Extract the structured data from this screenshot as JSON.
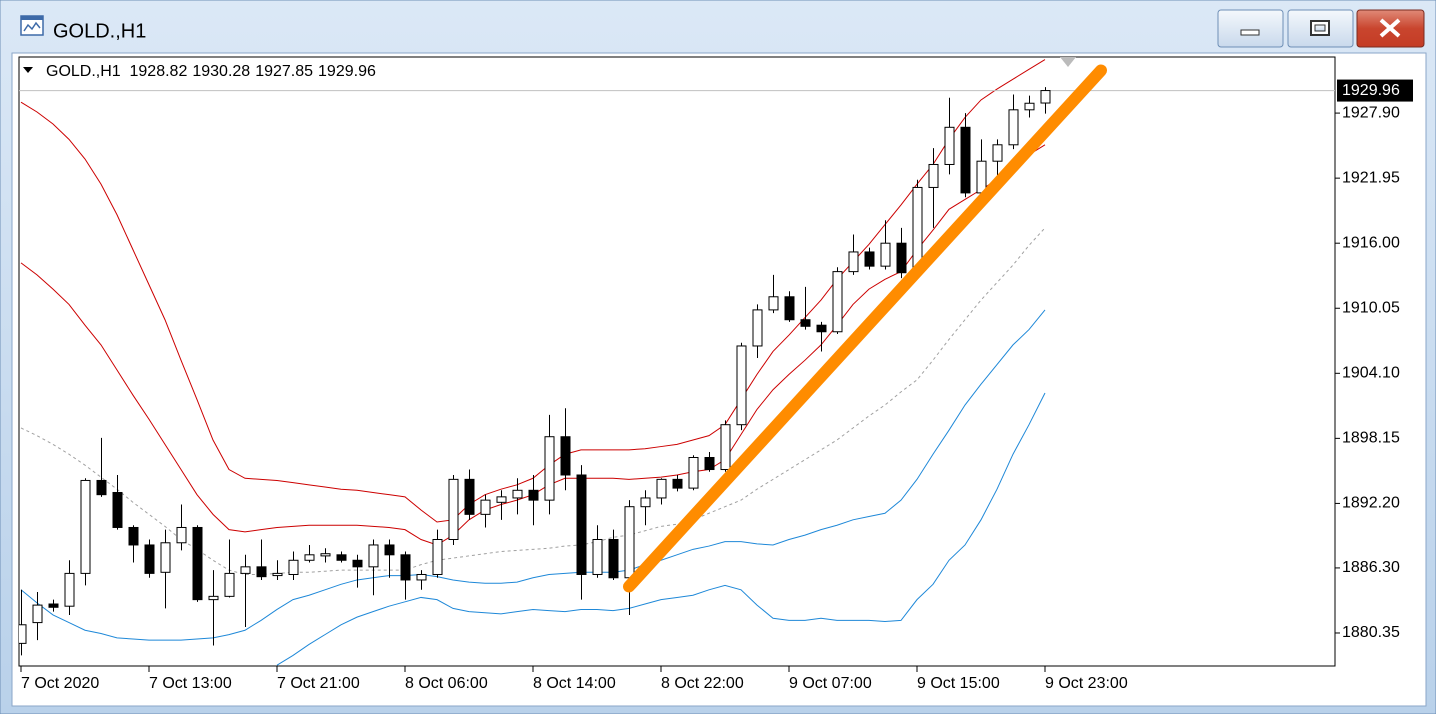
{
  "chart_data": {
    "type": "candlestick",
    "title": "GOLD.,H1",
    "categories": [
      "7 Oct 2020",
      null,
      null,
      null,
      null,
      null,
      null,
      null,
      "7 Oct 13:00",
      null,
      null,
      null,
      null,
      null,
      null,
      null,
      "7 Oct 21:00",
      null,
      null,
      null,
      null,
      null,
      null,
      null,
      "8 Oct 06:00",
      null,
      null,
      null,
      null,
      null,
      null,
      null,
      "8 Oct 14:00",
      null,
      null,
      null,
      null,
      null,
      null,
      null,
      "8 Oct 22:00",
      null,
      null,
      null,
      null,
      null,
      null,
      null,
      "9 Oct 07:00",
      null,
      null,
      null,
      null,
      null,
      null,
      null,
      "9 Oct 15:00",
      null,
      null,
      null,
      null,
      null,
      null,
      null,
      "9 Oct 23:00"
    ],
    "open": [
      1879.4,
      1881.3,
      1883.0,
      1882.8,
      1885.8,
      1894.3,
      1893.2,
      1890.0,
      1888.4,
      1885.9,
      1888.6,
      1890.0,
      1883.4,
      1883.7,
      1885.8,
      1886.4,
      1885.6,
      1885.7,
      1887.0,
      1887.4,
      1887.5,
      1887.0,
      1886.4,
      1888.4,
      1887.5,
      1885.2,
      1885.7,
      1888.9,
      1894.4,
      1891.2,
      1892.3,
      1892.7,
      1893.4,
      1892.5,
      1898.3,
      1894.8,
      1885.7,
      1888.9,
      1885.4,
      1891.9,
      1892.7,
      1894.4,
      1893.6,
      1896.4,
      1895.3,
      1899.4,
      1906.6,
      1909.9,
      1911.1,
      1909.0,
      1908.5,
      1907.9,
      1913.4,
      1915.2,
      1913.9,
      1916.0,
      1913.3,
      1921.1,
      1923.2,
      1926.6,
      1920.6,
      1923.5,
      1925.0,
      1928.2,
      1928.82
    ],
    "high": [
      1884.3,
      1884.1,
      1883.4,
      1887.0,
      1894.5,
      1898.2,
      1894.8,
      1890.2,
      1888.9,
      1889.8,
      1892.1,
      1890.2,
      1886.1,
      1888.9,
      1887.5,
      1888.9,
      1887.0,
      1887.8,
      1888.4,
      1888.1,
      1887.8,
      1887.5,
      1888.9,
      1888.9,
      1887.8,
      1886.1,
      1889.8,
      1894.8,
      1895.3,
      1893.0,
      1893.4,
      1894.5,
      1894.8,
      1900.3,
      1900.9,
      1895.7,
      1890.2,
      1889.8,
      1892.5,
      1893.4,
      1894.5,
      1894.8,
      1896.6,
      1896.9,
      1899.8,
      1906.9,
      1910.4,
      1913.1,
      1911.6,
      1912.0,
      1908.8,
      1913.8,
      1916.8,
      1915.6,
      1918.1,
      1917.4,
      1921.8,
      1924.7,
      1929.3,
      1927.9,
      1925.5,
      1925.5,
      1929.6,
      1929.5,
      1930.28
    ],
    "low": [
      1878.3,
      1879.7,
      1882.3,
      1882.0,
      1884.7,
      1892.8,
      1889.8,
      1886.8,
      1885.4,
      1882.6,
      1887.9,
      1883.2,
      1879.2,
      1883.6,
      1880.9,
      1885.2,
      1885.2,
      1885.2,
      1886.8,
      1886.8,
      1886.8,
      1884.5,
      1883.8,
      1885.4,
      1883.4,
      1884.3,
      1885.4,
      1888.4,
      1890.7,
      1890.0,
      1890.7,
      1891.2,
      1890.2,
      1891.2,
      1893.4,
      1883.4,
      1885.4,
      1885.2,
      1882.0,
      1890.2,
      1892.1,
      1893.3,
      1893.4,
      1895.1,
      1895.1,
      1898.9,
      1905.5,
      1909.6,
      1908.8,
      1908.1,
      1906.1,
      1907.7,
      1913.1,
      1913.6,
      1913.6,
      1912.8,
      1913.1,
      1917.4,
      1922.3,
      1920.2,
      1920.4,
      1921.8,
      1924.6,
      1927.5,
      1927.85
    ],
    "close": [
      1881.1,
      1882.9,
      1882.7,
      1885.8,
      1894.3,
      1893.0,
      1890.0,
      1888.4,
      1885.8,
      1888.6,
      1890.0,
      1883.4,
      1883.7,
      1885.8,
      1886.4,
      1885.5,
      1885.8,
      1887.0,
      1887.5,
      1887.6,
      1887.0,
      1886.4,
      1888.4,
      1887.5,
      1885.2,
      1885.7,
      1888.9,
      1894.4,
      1891.2,
      1892.5,
      1892.8,
      1893.4,
      1892.5,
      1898.3,
      1894.8,
      1885.7,
      1888.9,
      1885.4,
      1891.9,
      1892.7,
      1894.4,
      1893.6,
      1896.4,
      1895.3,
      1899.4,
      1906.6,
      1909.9,
      1911.1,
      1909.0,
      1908.4,
      1907.9,
      1913.4,
      1915.2,
      1913.9,
      1916.0,
      1913.3,
      1921.1,
      1923.2,
      1926.6,
      1920.6,
      1923.5,
      1925.0,
      1928.2,
      1928.8,
      1929.96
    ],
    "up_color": "#ffffff",
    "down_color": "#000000",
    "wick_color": "#000000",
    "lines": [
      {
        "color": "#cc0000",
        "dash": false,
        "values": [
          1928.9,
          1928.0,
          1926.9,
          1925.5,
          1923.7,
          1921.4,
          1918.6,
          1915.4,
          1912.2,
          1909.0,
          1905.3,
          1901.7,
          1898.0,
          1895.3,
          1894.5,
          1894.4,
          1894.3,
          1894.1,
          1893.9,
          1893.7,
          1893.5,
          1893.4,
          1893.2,
          1893.0,
          1892.8,
          1891.6,
          1890.5,
          1890.7,
          1892.1,
          1893.0,
          1893.5,
          1893.9,
          1894.5,
          1895.7,
          1896.7,
          1897.1,
          1897.1,
          1897.1,
          1897.1,
          1897.2,
          1897.4,
          1897.6,
          1898.0,
          1898.4,
          1899.4,
          1901.7,
          1904.0,
          1906.1,
          1907.6,
          1909.2,
          1910.8,
          1912.7,
          1914.3,
          1915.9,
          1917.7,
          1919.5,
          1921.4,
          1923.2,
          1925.5,
          1927.5,
          1929.1,
          1930.1,
          1931.0,
          1931.9,
          1932.8
        ]
      },
      {
        "color": "#cc0000",
        "dash": false,
        "values": [
          1914.2,
          1913.1,
          1911.8,
          1910.4,
          1908.5,
          1906.7,
          1904.4,
          1902.1,
          1899.9,
          1897.6,
          1895.3,
          1893.0,
          1891.2,
          1889.8,
          1889.6,
          1889.8,
          1890.0,
          1890.1,
          1890.2,
          1890.2,
          1890.2,
          1890.2,
          1890.1,
          1890.0,
          1889.8,
          1888.9,
          1888.4,
          1889.3,
          1890.7,
          1891.6,
          1892.1,
          1892.5,
          1893.0,
          1893.9,
          1894.5,
          1894.5,
          1894.5,
          1894.5,
          1894.4,
          1894.5,
          1894.6,
          1894.8,
          1895.1,
          1895.3,
          1896.2,
          1898.5,
          1900.8,
          1902.6,
          1904.0,
          1905.3,
          1906.7,
          1908.5,
          1910.4,
          1911.8,
          1912.7,
          1913.4,
          1915.4,
          1917.2,
          1919.1,
          1920.0,
          1920.9,
          1921.8,
          1923.2,
          1924.1,
          1925.0
        ]
      },
      {
        "color": "#a0a0a0",
        "dash": true,
        "values": [
          1899.1,
          1898.4,
          1897.6,
          1896.7,
          1895.7,
          1894.6,
          1893.5,
          1892.3,
          1891.2,
          1890.1,
          1888.9,
          1888.0,
          1887.0,
          1886.1,
          1885.7,
          1885.7,
          1885.8,
          1885.9,
          1885.9,
          1886.0,
          1886.1,
          1886.1,
          1886.1,
          1886.1,
          1886.1,
          1886.6,
          1887.0,
          1887.2,
          1887.4,
          1887.6,
          1887.8,
          1887.9,
          1888.0,
          1888.1,
          1888.3,
          1888.4,
          1888.7,
          1889.1,
          1889.3,
          1889.7,
          1890.1,
          1890.3,
          1890.7,
          1891.3,
          1891.9,
          1892.5,
          1893.5,
          1894.4,
          1895.3,
          1896.2,
          1897.1,
          1898.0,
          1899.1,
          1900.2,
          1901.2,
          1902.4,
          1903.5,
          1905.3,
          1907.2,
          1909.0,
          1910.8,
          1912.4,
          1914.0,
          1915.8,
          1917.4
        ]
      },
      {
        "color": "#1e88d8",
        "dash": false,
        "values": [
          1884.3,
          1883.1,
          1882.0,
          1881.3,
          1880.6,
          1880.3,
          1879.9,
          1879.8,
          1879.7,
          1879.7,
          1879.7,
          1879.8,
          1879.9,
          1880.2,
          1880.6,
          1881.5,
          1882.5,
          1883.4,
          1883.8,
          1884.3,
          1884.8,
          1885.2,
          1885.4,
          1885.6,
          1885.6,
          1885.7,
          1885.5,
          1885.2,
          1885.0,
          1884.9,
          1884.9,
          1885.0,
          1885.4,
          1885.7,
          1885.8,
          1885.9,
          1885.9,
          1885.9,
          1886.1,
          1886.6,
          1887.0,
          1887.5,
          1888.0,
          1888.3,
          1888.7,
          1888.7,
          1888.5,
          1888.4,
          1888.9,
          1889.3,
          1889.8,
          1890.2,
          1890.7,
          1891.0,
          1891.3,
          1892.5,
          1894.4,
          1896.7,
          1898.9,
          1901.2,
          1903.1,
          1904.9,
          1906.7,
          1908.1,
          1909.9
        ]
      },
      {
        "color": "#1e88d8",
        "dash": false,
        "values": [
          null,
          null,
          null,
          null,
          null,
          null,
          null,
          null,
          null,
          null,
          null,
          null,
          null,
          null,
          null,
          null,
          1877.4,
          1878.3,
          1879.3,
          1880.2,
          1881.1,
          1881.8,
          1882.3,
          1882.8,
          1883.2,
          1883.6,
          1883.4,
          1882.6,
          1882.3,
          1882.2,
          1882.1,
          1882.3,
          1882.5,
          1882.4,
          1882.3,
          1882.5,
          1882.5,
          1882.4,
          1882.6,
          1883.0,
          1883.4,
          1883.6,
          1883.8,
          1884.3,
          1884.7,
          1884.3,
          1882.9,
          1881.7,
          1881.5,
          1881.5,
          1881.7,
          1881.5,
          1881.5,
          1881.5,
          1881.4,
          1881.5,
          1883.4,
          1884.8,
          1887.0,
          1888.4,
          1890.7,
          1893.5,
          1896.7,
          1899.4,
          1902.3
        ]
      }
    ],
    "trendline": {
      "color": "#ff8c00",
      "x": [
        38,
        67.5
      ],
      "y": [
        1884.6,
        1931.8
      ]
    },
    "ylim": [
      1877.33,
      1933.03
    ],
    "yticks": [
      {
        "value": 1927.9,
        "label": "1927.90"
      },
      1921.95,
      {
        "value": 1916,
        "label": "1916.00"
      },
      1910.05,
      {
        "value": 1904.1,
        "label": "1904.10"
      },
      1898.15,
      {
        "value": 1892.2,
        "label": "1892.20"
      },
      {
        "value": 1886.3,
        "label": "1886.30"
      },
      1880.35
    ],
    "grid": false
  }
}
